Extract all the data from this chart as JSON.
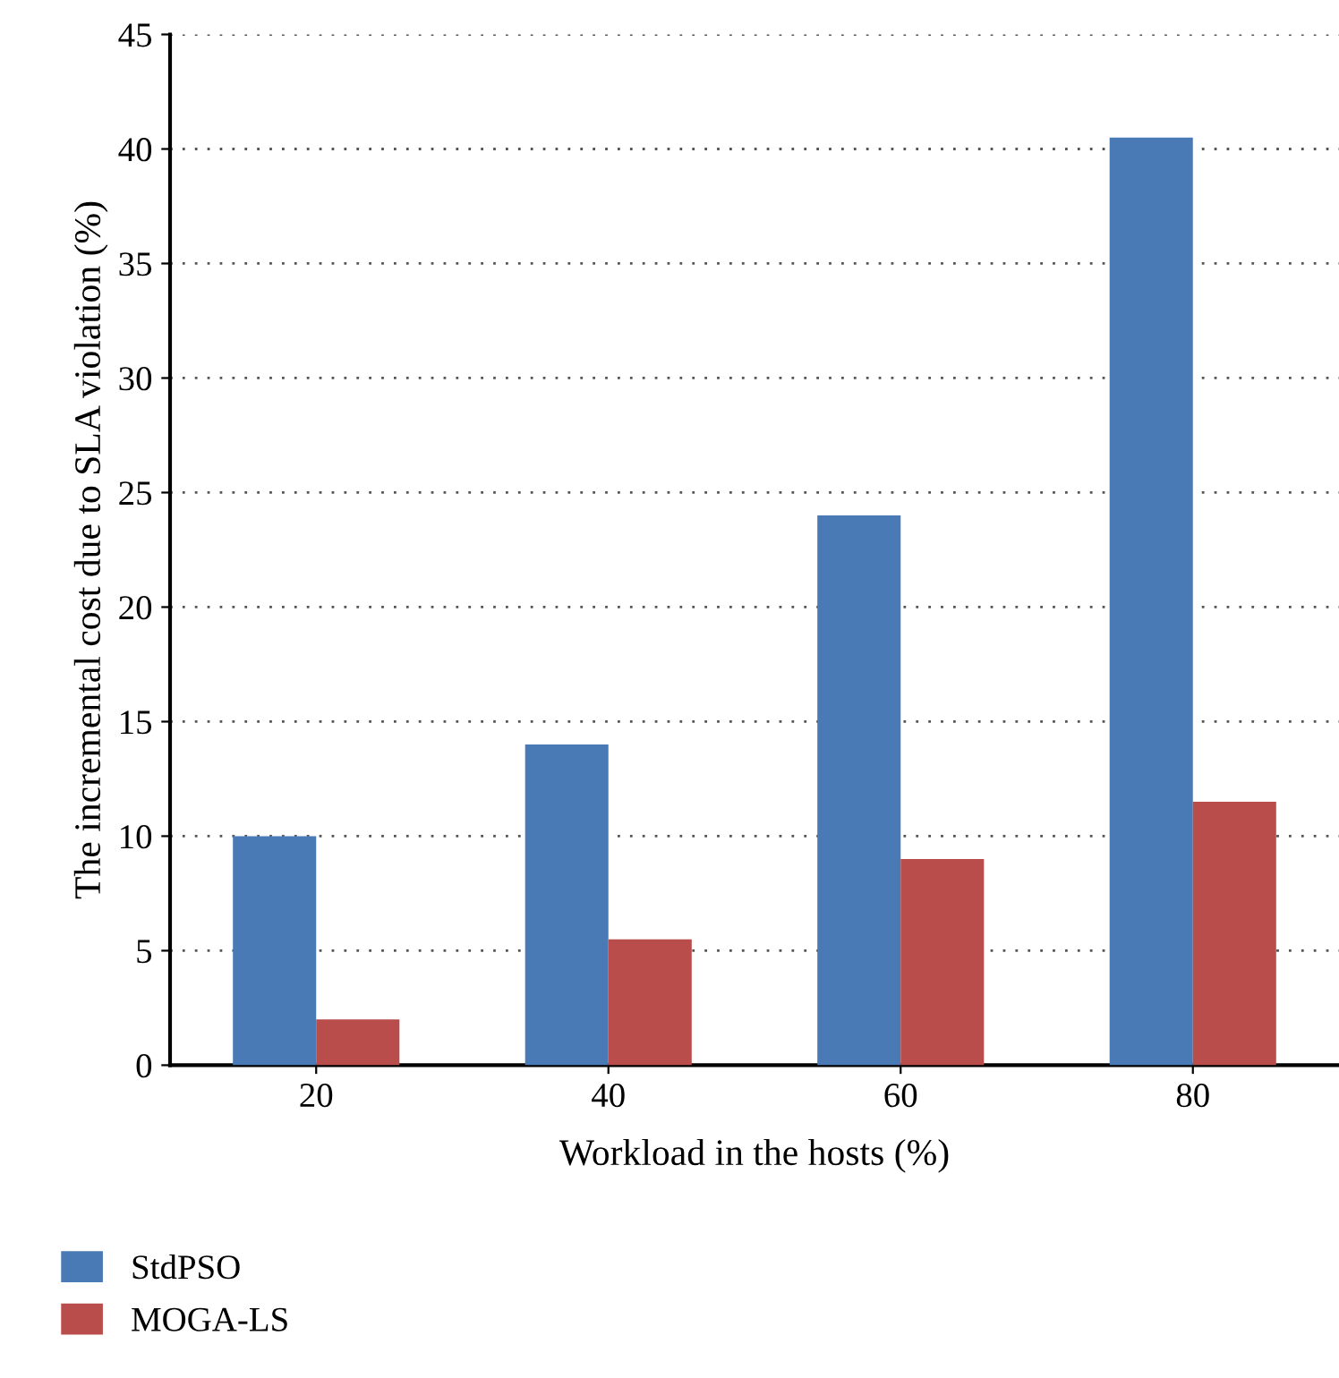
{
  "chart_data": {
    "type": "bar",
    "xlabel": "Workload in the hosts (%)",
    "ylabel": "The incremental cost due to SLA violation (%)",
    "categories": [
      "20",
      "40",
      "60",
      "80"
    ],
    "series": [
      {
        "name": "StdPSO",
        "color": "#4a7ab5",
        "values": [
          10,
          14,
          24,
          40.5
        ]
      },
      {
        "name": "MOGA-LS",
        "color": "#b94d4b",
        "values": [
          2,
          5.5,
          9,
          11.5
        ]
      }
    ],
    "ylim": [
      0,
      45
    ],
    "yticks": [
      0,
      5,
      10,
      15,
      20,
      25,
      30,
      35,
      40,
      45
    ],
    "grid": "y",
    "legend": "bottom left"
  }
}
